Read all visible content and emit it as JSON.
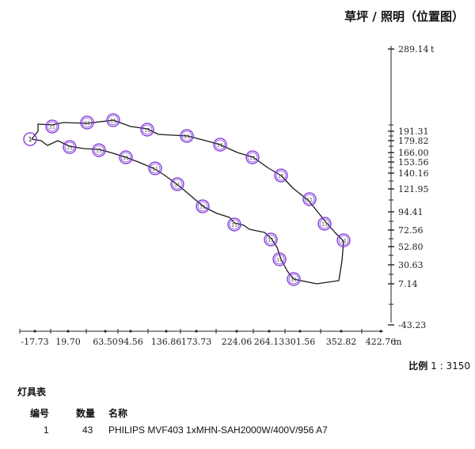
{
  "title": "草坪 / 照明（位置图）",
  "axes": {
    "x_ticks": [
      "-17.73",
      "19.70",
      "63.50",
      "94.56",
      "136.86",
      "173.73",
      "224.06",
      "264.13",
      "301.56",
      "352.82",
      "422.76"
    ],
    "x_unit": "m",
    "y_ticks": [
      "289.14",
      "191.31",
      "179.82",
      "166.00",
      "153.56",
      "140.16",
      "121.95",
      "94.41",
      "72.56",
      "52.80",
      "30.63",
      "7.14",
      "-43.23"
    ],
    "y_unit": "t"
  },
  "site": {
    "start_label": "1",
    "fixture_label": "11",
    "fixture_color": "#7b2fd6"
  },
  "scale": {
    "label": "比例",
    "value": "1 : 3150"
  },
  "legend": {
    "title": "灯具表",
    "headers": {
      "id": "编号",
      "qty": "数量",
      "name": "名称"
    },
    "rows": [
      {
        "id": "1",
        "qty": "43",
        "name": "PHILIPS MVF403 1xMHN-SAH2000W/400V/956 A7"
      }
    ]
  }
}
